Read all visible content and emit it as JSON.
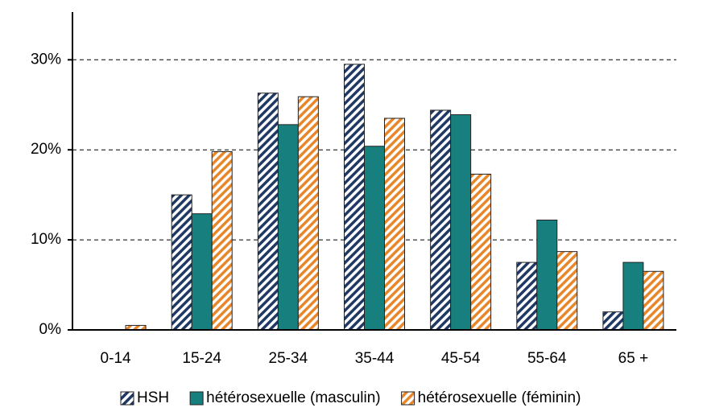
{
  "chart_data": {
    "type": "bar",
    "categories": [
      "0-14",
      "15-24",
      "25-34",
      "35-44",
      "45-54",
      "55-64",
      "65 +"
    ],
    "series": [
      {
        "name": "HSH",
        "color": "#1f3864",
        "hatch": true,
        "values": [
          0,
          15.0,
          26.3,
          29.5,
          24.4,
          7.5,
          2.0
        ]
      },
      {
        "name": "hétérosexuelle (masculin)",
        "color": "#17807e",
        "hatch": false,
        "values": [
          0,
          12.9,
          22.8,
          20.4,
          23.9,
          12.2,
          7.5
        ]
      },
      {
        "name": "hétérosexuelle (féminin)",
        "color": "#e8862a",
        "hatch": true,
        "values": [
          0.5,
          19.8,
          25.9,
          23.5,
          17.3,
          8.7,
          6.5
        ]
      }
    ],
    "ylim": [
      0,
      35.3
    ],
    "yticks": [
      {
        "value": 0,
        "label": "0%"
      },
      {
        "value": 10,
        "label": "10%"
      },
      {
        "value": 20,
        "label": "20%"
      },
      {
        "value": 30,
        "label": "30%"
      }
    ],
    "grid": true,
    "legend": "bottom"
  }
}
